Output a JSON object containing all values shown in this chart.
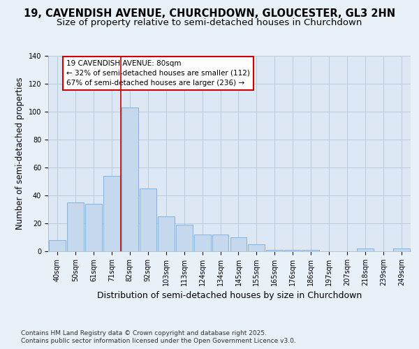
{
  "title_line1": "19, CAVENDISH AVENUE, CHURCHDOWN, GLOUCESTER, GL3 2HN",
  "title_line2": "Size of property relative to semi-detached houses in Churchdown",
  "xlabel": "Distribution of semi-detached houses by size in Churchdown",
  "ylabel": "Number of semi-detached properties",
  "categories": [
    "40sqm",
    "50sqm",
    "61sqm",
    "71sqm",
    "82sqm",
    "92sqm",
    "103sqm",
    "113sqm",
    "124sqm",
    "134sqm",
    "145sqm",
    "155sqm",
    "165sqm",
    "176sqm",
    "186sqm",
    "197sqm",
    "207sqm",
    "218sqm",
    "239sqm",
    "249sqm"
  ],
  "values": [
    8,
    35,
    34,
    54,
    103,
    45,
    25,
    19,
    12,
    12,
    10,
    5,
    1,
    1,
    1,
    0,
    0,
    2,
    0,
    2
  ],
  "bar_color": "#c5d8ee",
  "bar_edge_color": "#8ab0d4",
  "highlight_bar_index": 4,
  "highlight_line_color": "#cc0000",
  "annotation_box_text": "19 CAVENDISH AVENUE: 80sqm\n← 32% of semi-detached houses are smaller (112)\n67% of semi-detached houses are larger (236) →",
  "annotation_box_edge_color": "#cc0000",
  "annotation_box_facecolor": "#ffffff",
  "ylim": [
    0,
    140
  ],
  "grid_color": "#b8ccdf",
  "bg_color": "#e8f0f8",
  "plot_bg_color": "#dde8f4",
  "footer_line1": "Contains HM Land Registry data © Crown copyright and database right 2025.",
  "footer_line2": "Contains public sector information licensed under the Open Government Licence v3.0.",
  "title_fontsize": 10.5,
  "subtitle_fontsize": 9.5,
  "xlabel_fontsize": 9,
  "ylabel_fontsize": 8.5,
  "tick_fontsize": 7,
  "annotation_fontsize": 7.5,
  "footer_fontsize": 6.5
}
